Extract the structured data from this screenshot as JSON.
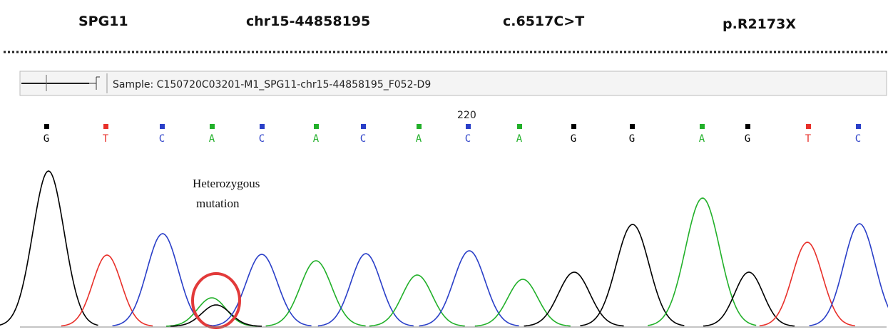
{
  "header": {
    "gene": "SPG11",
    "position": "chr15-44858195",
    "cdna": "c.6517C>T",
    "protein": "p.R2173X"
  },
  "sample": "Sample: C150720C03201-M1_SPG11-chr15-44858195_F052-D9",
  "position_label": "220",
  "bases": [
    {
      "base": "G",
      "color": "#000000"
    },
    {
      "base": "T",
      "color": "#e8302a"
    },
    {
      "base": "C",
      "color": "#2a3fc8"
    },
    {
      "base": "A",
      "color": "#22b02a"
    },
    {
      "base": "C",
      "color": "#2a3fc8"
    },
    {
      "base": "A",
      "color": "#22b02a"
    },
    {
      "base": "C",
      "color": "#2a3fc8"
    },
    {
      "base": "A",
      "color": "#22b02a"
    },
    {
      "base": "C",
      "color": "#2a3fc8"
    },
    {
      "base": "A",
      "color": "#22b02a"
    },
    {
      "base": "G",
      "color": "#000000"
    },
    {
      "base": "G",
      "color": "#000000"
    },
    {
      "base": "A",
      "color": "#22b02a"
    },
    {
      "base": "G",
      "color": "#000000"
    },
    {
      "base": "T",
      "color": "#e8302a"
    },
    {
      "base": "C",
      "color": "#2a3fc8"
    }
  ],
  "annotation": [
    "Heterozygous",
    "mutation"
  ]
}
